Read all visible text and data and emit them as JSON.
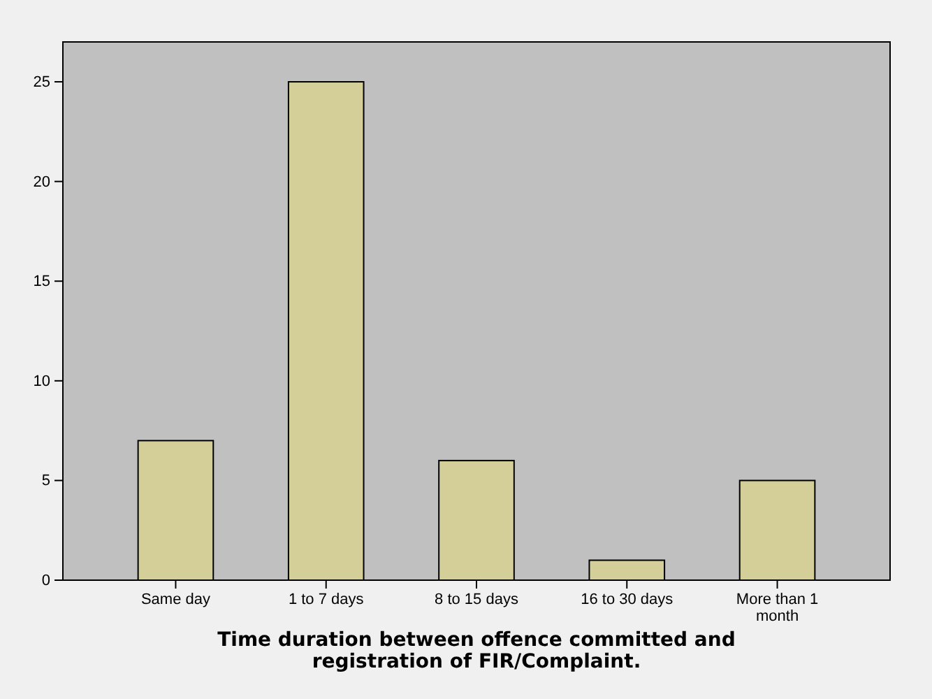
{
  "chart_data": {
    "type": "bar",
    "xlabel": "Time duration between offence committed and registration of FIR/Complaint.",
    "categories": [
      "Same day",
      "1 to 7 days",
      "8 to 15 days",
      "16 to 30 days",
      "More than 1 month"
    ],
    "values": [
      7,
      25,
      6,
      1,
      5
    ],
    "color": "#d4cf98",
    "ylim": [
      0,
      27
    ],
    "yticks": [
      0,
      5,
      10,
      15,
      20,
      25
    ],
    "grid": false
  }
}
